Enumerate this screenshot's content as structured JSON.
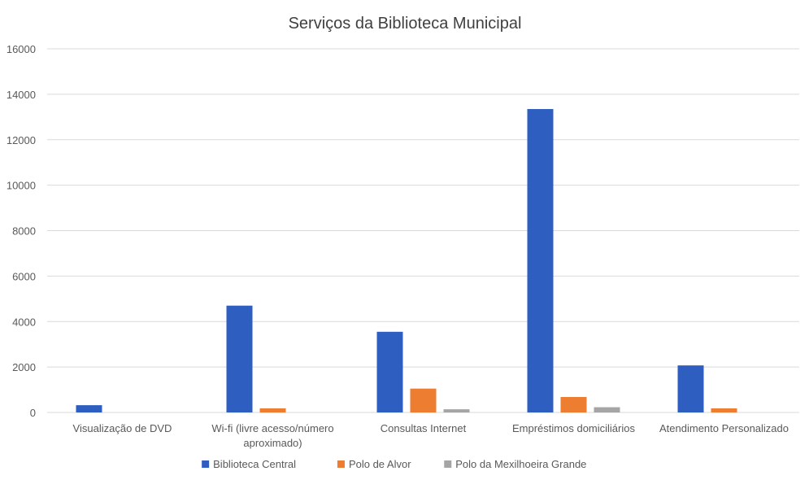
{
  "chart_data": {
    "type": "bar",
    "title": "Serviços da Biblioteca Municipal",
    "categories": [
      [
        "Visualização de DVD"
      ],
      [
        "Wi-fi (livre acesso/número",
        "aproximado)"
      ],
      [
        "Consultas Internet"
      ],
      [
        "Empréstimos domiciliários"
      ],
      [
        "Atendimento Personalizado"
      ]
    ],
    "series": [
      {
        "name": "Biblioteca Central",
        "color": "#2E5FC0",
        "values": [
          320,
          4700,
          3550,
          13350,
          2070
        ]
      },
      {
        "name": "Polo de Alvor",
        "color": "#ED7D31",
        "values": [
          0,
          180,
          1050,
          680,
          180
        ]
      },
      {
        "name": "Polo da Mexilhoeira Grande",
        "color": "#A5A5A5",
        "values": [
          0,
          0,
          140,
          230,
          0
        ]
      }
    ],
    "ylim": [
      0,
      16000
    ],
    "yticks": [
      "0",
      "2000",
      "4000",
      "6000",
      "8000",
      "10000",
      "12000",
      "14000",
      "16000"
    ],
    "grid": true,
    "legend": "bottom"
  }
}
